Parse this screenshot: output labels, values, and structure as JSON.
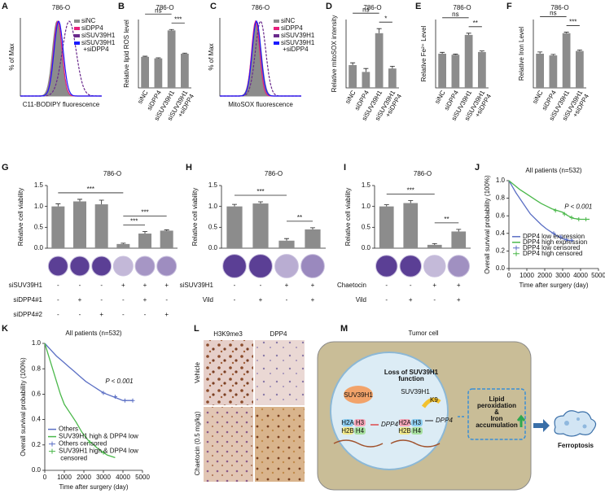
{
  "chart_data": [
    {
      "type": "flow",
      "panel": "A",
      "title": "786-O",
      "ylabel": "% of Max",
      "xlabel": "C11-BODIPY fluorescence",
      "series": [
        {
          "name": "siNC",
          "color": "#8c8c8c"
        },
        {
          "name": "siDPP4",
          "color": "#e8207c"
        },
        {
          "name": "siSUV39H1",
          "color": "#6a2a8c"
        },
        {
          "name": "siSUV39H1 +siDPP4",
          "color": "#1a1aff"
        }
      ]
    },
    {
      "type": "bar",
      "panel": "B",
      "title": "786-O",
      "ylabel": "Relative lipid ROS level",
      "color": "#8c8c8c",
      "categories": [
        "siNC",
        "siDPP4",
        "siSUV39H1",
        "siSUV39H1 +siDPP4"
      ],
      "values": [
        1.0,
        0.95,
        1.85,
        1.1
      ],
      "errors": [
        0.02,
        0.02,
        0.03,
        0.02
      ],
      "ylim": [
        0,
        2.2
      ],
      "annotations": [
        {
          "text": "***",
          "from": 2,
          "to": 3
        },
        {
          "text": "ns",
          "from": 0,
          "to": 2
        }
      ]
    },
    {
      "type": "flow",
      "panel": "C",
      "title": "786-O",
      "ylabel": "% of Max",
      "xlabel": "MitoSOX fluorescence",
      "series": [
        {
          "name": "siNC",
          "color": "#8c8c8c"
        },
        {
          "name": "siDPP4",
          "color": "#e8207c"
        },
        {
          "name": "siSUV39H1",
          "color": "#6a2a8c"
        },
        {
          "name": "siSUV39H1 +siDPP4",
          "color": "#1a1aff"
        }
      ]
    },
    {
      "type": "bar",
      "panel": "D",
      "title": "786-O",
      "ylabel": "Relative mitoSOX intensity",
      "color": "#8c8c8c",
      "categories": [
        "siNC",
        "siDPP4",
        "siSUV39H1",
        "siSUV39H1 +siDPP4"
      ],
      "values": [
        1.0,
        0.7,
        2.4,
        0.85
      ],
      "errors": [
        0.1,
        0.15,
        0.2,
        0.1
      ],
      "ylim": [
        0,
        3.0
      ],
      "annotations": [
        {
          "text": "*",
          "from": 2,
          "to": 3
        },
        {
          "text": "ns",
          "from": 0,
          "to": 2
        }
      ]
    },
    {
      "type": "bar",
      "panel": "E",
      "title": "786-O",
      "ylabel": "Relative Fe²⁺ Level",
      "color": "#8c8c8c",
      "categories": [
        "siNC",
        "siDPP4",
        "siSUV39H1",
        "siSUV39H1 +siDPP4"
      ],
      "values": [
        1.0,
        0.97,
        1.55,
        1.05
      ],
      "errors": [
        0.04,
        0.02,
        0.05,
        0.03
      ],
      "ylim": [
        0,
        2.0
      ],
      "annotations": [
        {
          "text": "**",
          "from": 2,
          "to": 3
        },
        {
          "text": "ns",
          "from": 0,
          "to": 2
        }
      ]
    },
    {
      "type": "bar",
      "panel": "F",
      "title": "786-O",
      "ylabel": "Relative Iron Level",
      "color": "#8c8c8c",
      "categories": [
        "siNC",
        "siDPP4",
        "siSUV39H1",
        "siSUV39H1 +siDPP4"
      ],
      "values": [
        1.0,
        0.95,
        1.6,
        1.08
      ],
      "errors": [
        0.05,
        0.03,
        0.03,
        0.03
      ],
      "ylim": [
        0,
        2.0
      ],
      "annotations": [
        {
          "text": "***",
          "from": 2,
          "to": 3
        },
        {
          "text": "ns",
          "from": 0,
          "to": 2
        }
      ]
    },
    {
      "type": "bar",
      "panel": "G",
      "title": "786-O",
      "ylabel": "Relative cell viability",
      "color": "#8c8c8c",
      "values": [
        1.0,
        1.12,
        1.05,
        0.1,
        0.35,
        0.42
      ],
      "errors": [
        0.06,
        0.05,
        0.1,
        0.02,
        0.05,
        0.02
      ],
      "ylim": [
        0,
        1.5
      ],
      "yticks": [
        {
          "value": 0,
          "label": "0.0"
        },
        0.5,
        {
          "value": 1,
          "label": "1.0"
        },
        1.5
      ],
      "annotations": [
        {
          "text": "***",
          "from": 3,
          "to": 4
        },
        {
          "text": "***",
          "from": 3,
          "to": 5
        },
        {
          "text": "***",
          "from": 0,
          "to": 3
        }
      ],
      "conditions": [
        {
          "name": "siSUV39H1",
          "signs": [
            "-",
            "-",
            "-",
            "+",
            "+",
            "+"
          ]
        },
        {
          "name": "siDPP4#1",
          "signs": [
            "-",
            "+",
            "-",
            "-",
            "+",
            "-"
          ]
        },
        {
          "name": "siDPP4#2",
          "signs": [
            "-",
            "-",
            "+",
            "-",
            "-",
            "+"
          ]
        }
      ]
    },
    {
      "type": "bar",
      "panel": "H",
      "title": "786-O",
      "ylabel": "Relative cell viability",
      "color": "#8c8c8c",
      "values": [
        1.0,
        1.07,
        0.18,
        0.45
      ],
      "errors": [
        0.05,
        0.04,
        0.05,
        0.04
      ],
      "ylim": [
        0,
        1.5
      ],
      "yticks": [
        {
          "value": 0,
          "label": "0.0"
        },
        0.5,
        {
          "value": 1,
          "label": "1.0"
        },
        1.5
      ],
      "annotations": [
        {
          "text": "**",
          "from": 2,
          "to": 3
        },
        {
          "text": "***",
          "from": 0,
          "to": 2
        }
      ],
      "conditions": [
        {
          "name": "siSUV39H1",
          "signs": [
            "-",
            "-",
            "+",
            "+"
          ]
        },
        {
          "name": "Vild",
          "signs": [
            "-",
            "+",
            "-",
            "+"
          ]
        }
      ]
    },
    {
      "type": "bar",
      "panel": "I",
      "title": "786-O",
      "ylabel": "Relative cell viability",
      "color": "#8c8c8c",
      "values": [
        1.0,
        1.08,
        0.08,
        0.4
      ],
      "errors": [
        0.04,
        0.06,
        0.03,
        0.05
      ],
      "ylim": [
        0,
        1.5
      ],
      "yticks": [
        {
          "value": 0,
          "label": "0.0"
        },
        0.5,
        {
          "value": 1,
          "label": "1.0"
        },
        1.5
      ],
      "annotations": [
        {
          "text": "**",
          "from": 2,
          "to": 3
        },
        {
          "text": "***",
          "from": 0,
          "to": 2
        }
      ],
      "conditions": [
        {
          "name": "Chaetocin",
          "signs": [
            "-",
            "-",
            "+",
            "+"
          ]
        },
        {
          "name": "Vild",
          "signs": [
            "-",
            "+",
            "-",
            "+"
          ]
        }
      ]
    },
    {
      "type": "km",
      "panel": "J",
      "title": "All patients (n=532)",
      "ylabel": "Overall survival probability (100%)",
      "xlabel": "Time after surgery (day)",
      "pvalue": "P < 0.001",
      "xlim": [
        0,
        5000
      ],
      "xticks": [
        0,
        1000,
        2000,
        3000,
        4000,
        5000
      ],
      "ylim": [
        0,
        1
      ],
      "yticks": [
        {
          "value": 0,
          "label": "0.0"
        },
        0.2,
        0.4,
        0.6,
        0.8,
        {
          "value": 1,
          "label": "1.0"
        }
      ],
      "series": [
        {
          "name": "DPP4 low expression",
          "color": "#5b6fc4",
          "x": [
            0,
            200,
            400,
            600,
            800,
            1000,
            1200,
            1500,
            1800,
            2100,
            2400,
            2700,
            3000,
            3300,
            3600
          ],
          "values": [
            1,
            0.93,
            0.86,
            0.8,
            0.74,
            0.68,
            0.62,
            0.56,
            0.5,
            0.45,
            0.41,
            0.37,
            0.34,
            0.32,
            0.32
          ]
        },
        {
          "name": "DPP4 high expression",
          "color": "#4bb84b",
          "x": [
            0,
            300,
            600,
            900,
            1200,
            1500,
            1800,
            2100,
            2400,
            2700,
            3000,
            3300,
            3600,
            4000,
            4500
          ],
          "values": [
            1,
            0.95,
            0.9,
            0.86,
            0.82,
            0.78,
            0.74,
            0.71,
            0.68,
            0.66,
            0.64,
            0.6,
            0.57,
            0.56,
            0.56
          ]
        },
        {
          "name": "DPP4 low censored",
          "color": "#5b6fc4",
          "marker": "+",
          "x": [
            2500,
            2900,
            3200,
            3500
          ],
          "values": [
            0.4,
            0.36,
            0.33,
            0.32
          ]
        },
        {
          "name": "DPP4 high censored",
          "color": "#4bb84b",
          "marker": "+",
          "x": [
            2600,
            3100,
            3500,
            3900,
            4300
          ],
          "values": [
            0.66,
            0.62,
            0.58,
            0.56,
            0.56
          ]
        }
      ]
    },
    {
      "type": "km",
      "panel": "K",
      "title": "All patients (n=532)",
      "ylabel": "Overall survival probability (100%)",
      "xlabel": "Time after surgery (day)",
      "pvalue": "P < 0.001",
      "xlim": [
        0,
        5000
      ],
      "xticks": [
        0,
        1000,
        2000,
        3000,
        4000,
        5000
      ],
      "ylim": [
        0,
        1
      ],
      "yticks": [
        {
          "value": 0,
          "label": "0.0"
        },
        0.2,
        0.4,
        0.6,
        0.8,
        {
          "value": 1,
          "label": "1.0"
        }
      ],
      "series": [
        {
          "name": "Others",
          "color": "#5b6fc4",
          "x": [
            0,
            300,
            600,
            900,
            1200,
            1500,
            1800,
            2100,
            2400,
            2700,
            3000,
            3500,
            4000,
            4500
          ],
          "values": [
            1,
            0.95,
            0.9,
            0.86,
            0.82,
            0.78,
            0.74,
            0.7,
            0.67,
            0.64,
            0.61,
            0.58,
            0.55,
            0.55
          ]
        },
        {
          "name": "SUV39H1 high & DPP4 low",
          "color": "#4bb84b",
          "x": [
            0,
            200,
            400,
            600,
            800,
            1000,
            1300,
            1600,
            1900,
            2200,
            2500,
            2800,
            3200,
            3600
          ],
          "values": [
            1,
            0.9,
            0.8,
            0.7,
            0.6,
            0.52,
            0.45,
            0.38,
            0.3,
            0.24,
            0.2,
            0.16,
            0.12,
            0.1
          ]
        },
        {
          "name": "Others censored",
          "color": "#5b6fc4",
          "marker": "+",
          "x": [
            3000,
            3600,
            4100,
            4500
          ],
          "values": [
            0.61,
            0.58,
            0.55,
            0.55
          ]
        },
        {
          "name": "SUV39H1 high & DPP4 low censored",
          "color": "#4bb84b",
          "marker": "+",
          "x": [
            2300,
            3000
          ],
          "values": [
            0.22,
            0.14
          ]
        }
      ]
    }
  ],
  "histology": {
    "panel": "L",
    "columns": [
      "H3K9me3",
      "DPP4"
    ],
    "rows": [
      "Vehicle",
      "Chaetocin (0.5 mg/kg)"
    ]
  },
  "diagram": {
    "panel": "M",
    "title": "Tumor cell",
    "heading": [
      "Loss of SUV39H1",
      "function"
    ],
    "enzyme": [
      "SUV39H1",
      "SUV39H1"
    ],
    "mark": "K9",
    "histones": [
      "H2A",
      "H3",
      "H2B",
      "H4"
    ],
    "histones_right": [
      "H2A",
      "H3",
      "H2B",
      "H4"
    ],
    "gene": [
      "DPP4",
      "DPP4"
    ],
    "effect": [
      "Lipid",
      "peroxidation",
      "&",
      "Iron",
      "accumulation"
    ],
    "outcome": "Ferroptosis"
  }
}
